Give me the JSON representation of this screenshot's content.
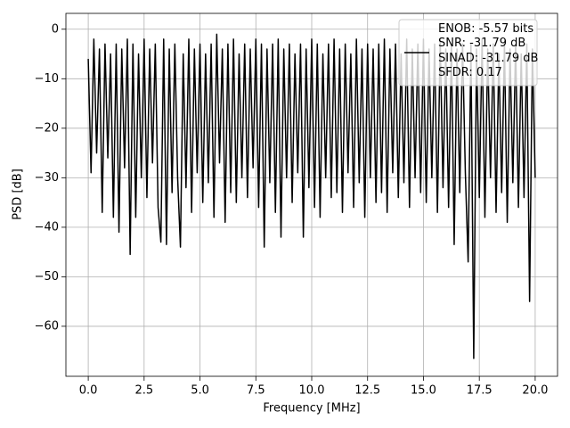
{
  "chart_data": {
    "type": "line",
    "xlabel": "Frequency [MHz]",
    "ylabel": "PSD [dB]",
    "x": [
      0,
      0.125,
      0.25,
      0.375,
      0.5,
      0.625,
      0.75,
      0.875,
      1,
      1.125,
      1.25,
      1.375,
      1.5,
      1.625,
      1.75,
      1.875,
      2,
      2.125,
      2.25,
      2.375,
      2.5,
      2.625,
      2.75,
      2.875,
      3,
      3.125,
      3.25,
      3.375,
      3.5,
      3.625,
      3.75,
      3.875,
      4,
      4.125,
      4.25,
      4.375,
      4.5,
      4.625,
      4.75,
      4.875,
      5,
      5.125,
      5.25,
      5.375,
      5.5,
      5.625,
      5.75,
      5.875,
      6,
      6.125,
      6.25,
      6.375,
      6.5,
      6.625,
      6.75,
      6.875,
      7,
      7.125,
      7.25,
      7.375,
      7.5,
      7.625,
      7.75,
      7.875,
      8,
      8.125,
      8.25,
      8.375,
      8.5,
      8.625,
      8.75,
      8.875,
      9,
      9.125,
      9.25,
      9.375,
      9.5,
      9.625,
      9.75,
      9.875,
      10,
      10.125,
      10.25,
      10.375,
      10.5,
      10.625,
      10.75,
      10.875,
      11,
      11.125,
      11.25,
      11.375,
      11.5,
      11.625,
      11.75,
      11.875,
      12,
      12.125,
      12.25,
      12.375,
      12.5,
      12.625,
      12.75,
      12.875,
      13,
      13.125,
      13.25,
      13.375,
      13.5,
      13.625,
      13.75,
      13.875,
      14,
      14.125,
      14.25,
      14.375,
      14.5,
      14.625,
      14.75,
      14.875,
      15,
      15.125,
      15.25,
      15.375,
      15.5,
      15.625,
      15.75,
      15.875,
      16,
      16.125,
      16.25,
      16.375,
      16.5,
      16.625,
      16.75,
      16.875,
      17,
      17.125,
      17.25,
      17.375,
      17.5,
      17.625,
      17.75,
      17.875,
      18,
      18.125,
      18.25,
      18.375,
      18.5,
      18.625,
      18.75,
      18.875,
      19,
      19.125,
      19.25,
      19.375,
      19.5,
      19.625,
      19.75,
      19.875,
      20
    ],
    "series": [
      {
        "name": "ENOB: -5.57 bits\nSNR: -31.79 dB\nSINAD: -31.79 dB\nSFDR: 0.17",
        "color": "#000000",
        "values": [
          -6,
          -29,
          -2,
          -25,
          -4,
          -37,
          -3,
          -26,
          -5,
          -38,
          -3,
          -41,
          -4,
          -28,
          -2,
          -45.5,
          -3,
          -38,
          -5,
          -30,
          -2,
          -34,
          -4,
          -27,
          -3,
          -36,
          -43,
          -2,
          -43.5,
          -4,
          -33,
          -3,
          -30,
          -44,
          -5,
          -32,
          -2,
          -37,
          -4,
          -29,
          -3,
          -35,
          -5,
          -31,
          -3,
          -38,
          -1,
          -27,
          -4,
          -39,
          -3,
          -33,
          -2,
          -35,
          -5,
          -30,
          -3,
          -34,
          -4,
          -28,
          -2,
          -36,
          -3,
          -44,
          -4,
          -31,
          -3,
          -37,
          -2,
          -42,
          -4,
          -30,
          -3,
          -35,
          -5,
          -29,
          -3,
          -42,
          -4,
          -32,
          -2,
          -36,
          -3,
          -38,
          -5,
          -30,
          -3,
          -34,
          -2,
          -33,
          -4,
          -37,
          -3,
          -29,
          -5,
          -36,
          -2,
          -31,
          -4,
          -38,
          -3,
          -30,
          -4,
          -35,
          -3,
          -33,
          -2,
          -37,
          -4,
          -29,
          -3,
          -34,
          -5,
          -31,
          -2,
          -36,
          -4,
          -30,
          -3,
          -33,
          -2,
          -35,
          -4,
          -30,
          -3,
          -37,
          -2,
          -32,
          -4,
          -36,
          -3,
          -43.5,
          -4,
          -33,
          -3,
          -29,
          -47,
          -3,
          -66.5,
          -4,
          -34,
          -2,
          -38,
          -4,
          -30,
          -3,
          -37,
          -5,
          -33,
          -3,
          -39,
          -4,
          -31,
          -3,
          -36,
          -5,
          -34,
          -3,
          -55,
          -4,
          -30
        ]
      }
    ],
    "xlim": [
      -1,
      21
    ],
    "ylim": [
      -70.1,
      3.2
    ],
    "xticks": [
      {
        "value": 0,
        "label": "0.0"
      },
      {
        "value": 2.5,
        "label": "2.5"
      },
      {
        "value": 5,
        "label": "5.0"
      },
      {
        "value": 7.5,
        "label": "7.5"
      },
      {
        "value": 10,
        "label": "10.0"
      },
      {
        "value": 12.5,
        "label": "12.5"
      },
      {
        "value": 15,
        "label": "15.0"
      },
      {
        "value": 17.5,
        "label": "17.5"
      },
      {
        "value": 20,
        "label": "20.0"
      }
    ],
    "yticks": [
      0,
      {
        "value": -10,
        "label": "−10"
      },
      {
        "value": -20,
        "label": "−20"
      },
      {
        "value": -30,
        "label": "−30"
      },
      {
        "value": -40,
        "label": "−40"
      },
      {
        "value": -50,
        "label": "−50"
      },
      {
        "value": -60,
        "label": "−60"
      }
    ],
    "grid": true,
    "legend": "upper right"
  }
}
